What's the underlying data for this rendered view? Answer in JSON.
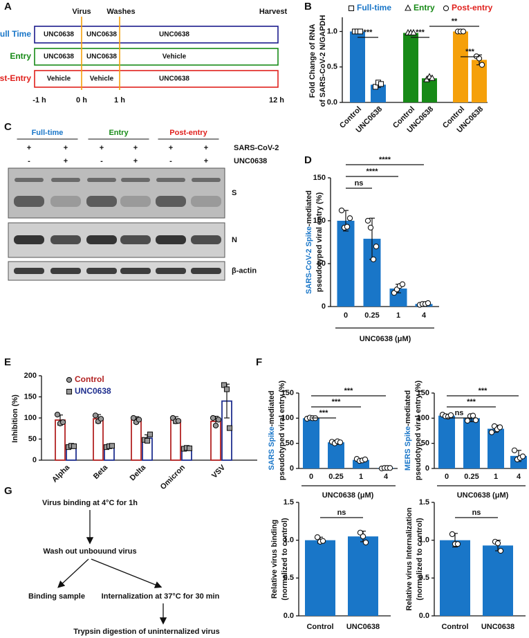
{
  "panel_labels": [
    "A",
    "B",
    "C",
    "D",
    "E",
    "F",
    "G"
  ],
  "timeline": {
    "top_labels": [
      "Virus",
      "Washes",
      "Harvest"
    ],
    "rows": [
      {
        "name": "Full Time",
        "color": "#1976c8",
        "box": "#1a1a8c",
        "cells": [
          "UNC0638",
          "UNC0638",
          "UNC0638"
        ]
      },
      {
        "name": "Entry",
        "color": "#178a17",
        "box": "#178a17",
        "cells": [
          "UNC0638",
          "UNC0638",
          "Vehicle"
        ]
      },
      {
        "name": "Post-Entry",
        "color": "#e0201c",
        "box": "#e0201c",
        "cells": [
          "Vehicle",
          "Vehicle",
          "UNC0638"
        ]
      }
    ],
    "ticks": [
      "-1 h",
      "0 h",
      "1 h",
      "12 h"
    ]
  },
  "blot": {
    "groups": [
      {
        "name": "Full-time",
        "color": "#1976c8"
      },
      {
        "name": "Entry",
        "color": "#178a17"
      },
      {
        "name": "Post-entry",
        "color": "#e0201c"
      }
    ],
    "treatments": [
      {
        "name": "SARS-CoV-2",
        "signs": [
          "+",
          "+",
          "+",
          "+",
          "+",
          "+"
        ]
      },
      {
        "name": "UNC0638",
        "signs": [
          "-",
          "+",
          "-",
          "+",
          "-",
          "+"
        ]
      }
    ],
    "bands": [
      "S",
      "N",
      "β-actin"
    ]
  },
  "flowchart": {
    "steps": [
      "Virus binding at  4°C for 1h",
      "Wash out unbouund virus",
      "Binding sample",
      "Internalization at 37°C for 30 min",
      "Trypsin digestion of uninternalized virus"
    ]
  },
  "chart_data": [
    {
      "type": "bar",
      "ylabel": [
        "Fold Change of RNA",
        "of SARS-CoV-2 N/GAPDH"
      ],
      "categories": [
        "Control",
        "UNC0638"
      ],
      "series": [
        {
          "name": "Full-time",
          "color": "#1976c8",
          "label_color": "#1976c8",
          "marker": "square",
          "values": [
            1,
            0.25
          ],
          "errors": [
            0.01,
            0.04
          ],
          "points": [
            [
              1,
              1,
              1
            ],
            [
              0.22,
              0.28,
              0.26
            ]
          ]
        },
        {
          "name": "Entry",
          "color": "#178a17",
          "label_color": "#178a17",
          "marker": "triangle",
          "values": [
            0.98,
            0.34
          ],
          "errors": [
            0.01,
            0.03
          ],
          "points": [
            [
              0.98,
              0.98,
              0.98
            ],
            [
              0.32,
              0.36,
              0.34
            ]
          ]
        },
        {
          "name": "Post-entry",
          "color": "#f5a00a",
          "label_color": "#e0201c",
          "marker": "circle",
          "values": [
            1,
            0.6
          ],
          "errors": [
            0.01,
            0.07
          ],
          "points": [
            [
              1,
              1,
              1
            ],
            [
              0.65,
              0.62,
              0.53
            ]
          ]
        }
      ],
      "ylim": [
        0,
        1.2
      ],
      "yticks": [
        {
          "value": 0,
          "label": "0.0"
        },
        0.5,
        {
          "value": 1,
          "label": "1.0"
        }
      ],
      "annotations": [
        "***",
        "***",
        "**",
        "***"
      ]
    },
    {
      "type": "bar",
      "ylabel_highlight": "SARS-CoV-2 Spike",
      "ylabel_highlight_color": "#1976c8",
      "ylabel": [
        "-mediated",
        "pseudotyped viral entry (%)"
      ],
      "categories": [
        "0",
        "0.25",
        "1",
        "4"
      ],
      "values": [
        100,
        79,
        21,
        3
      ],
      "errors": [
        12,
        24,
        5,
        1
      ],
      "points": [
        [
          112,
          92,
          93,
          103
        ],
        [
          100,
          92,
          55,
          70
        ],
        [
          16,
          20,
          24,
          26
        ],
        [
          2,
          3,
          3,
          4
        ]
      ],
      "color": "#1976c8",
      "xlabel": "UNC0638 (μM)",
      "ylim": [
        0,
        150
      ],
      "yticks": [
        0,
        50,
        100,
        150
      ],
      "annotations": [
        "ns",
        "****",
        "****"
      ]
    },
    {
      "type": "bar",
      "ylabel": [
        "Inhibition (%)"
      ],
      "categories": [
        "Alpha",
        "Beta",
        "Delta",
        "Omicron",
        "VSV"
      ],
      "series": [
        {
          "name": "Control",
          "color": "#b22222",
          "marker": "circle",
          "values": [
            95,
            98,
            95,
            95,
            92
          ],
          "errors": [
            12,
            10,
            8,
            8,
            12
          ],
          "points": [
            [
              108,
              87,
              90
            ],
            [
              106,
              92,
              98
            ],
            [
              100,
              90,
              96
            ],
            [
              100,
              92,
              93
            ],
            [
              100,
              82,
              96
            ]
          ]
        },
        {
          "name": "UNC0638",
          "color": "#1f2f8f",
          "marker": "square",
          "values": [
            32,
            33,
            52,
            28,
            140
          ],
          "errors": [
            2,
            3,
            8,
            2,
            40
          ],
          "points": [
            [
              31,
              34,
              33
            ],
            [
              31,
              33,
              34
            ],
            [
              48,
              46,
              61
            ],
            [
              27,
              29,
              28
            ],
            [
              178,
              168,
              76
            ]
          ]
        }
      ],
      "ylim": [
        0,
        200
      ],
      "yticks": [
        0,
        50,
        100,
        150,
        200
      ],
      "hollow": true
    },
    {
      "type": "bar",
      "ylabel_highlight": "SARS Spike",
      "ylabel_highlight_color": "#1976c8",
      "ylabel": [
        "-mediated",
        "pseudotyped viral entry (%)"
      ],
      "categories": [
        "0",
        "0.25",
        "1",
        "4"
      ],
      "values": [
        100,
        52,
        17,
        1
      ],
      "errors": [
        2,
        4,
        3,
        0.5
      ],
      "points": [
        [
          99,
          101,
          100,
          100
        ],
        [
          53,
          50,
          54,
          52
        ],
        [
          19,
          15,
          16,
          18
        ],
        [
          0,
          1,
          1,
          1
        ]
      ],
      "color": "#1976c8",
      "xlabel": "UNC0638 (μM)",
      "ylim": [
        0,
        150
      ],
      "yticks": [
        0,
        50,
        100,
        150
      ],
      "annotations": [
        "***",
        "***",
        "***"
      ]
    },
    {
      "type": "bar",
      "ylabel_highlight": "MERS Spike",
      "ylabel_highlight_color": "#1976c8",
      "ylabel": [
        "-mediated",
        "pseudotyped viral entry (%)"
      ],
      "categories": [
        "0",
        "0.25",
        "1",
        "4"
      ],
      "values": [
        105,
        100,
        79,
        25
      ],
      "errors": [
        3,
        7,
        7,
        11
      ],
      "points": [
        [
          107,
          104,
          103,
          106
        ],
        [
          95,
          104,
          105,
          96
        ],
        [
          72,
          84,
          78,
          82
        ],
        [
          36,
          18,
          21,
          24
        ]
      ],
      "color": "#1976c8",
      "xlabel": "UNC0638 (μM)",
      "ylim": [
        0,
        150
      ],
      "yticks": [
        0,
        50,
        100,
        150
      ],
      "annotations": [
        "ns",
        "***",
        "***"
      ]
    },
    {
      "type": "bar",
      "ylabel": [
        "Relative virus binding",
        "(normalized to control)"
      ],
      "categories": [
        "Control",
        "UNC0638"
      ],
      "values": [
        1,
        1.05
      ],
      "errors": [
        0.04,
        0.07
      ],
      "points": [
        [
          1.04,
          0.98,
          0.99
        ],
        [
          1.1,
          1.05,
          0.97
        ]
      ],
      "color": "#1976c8",
      "ylim": [
        0,
        1.5
      ],
      "yticks": [
        {
          "value": 0,
          "label": "0.0"
        },
        0.5,
        {
          "value": 1,
          "label": "1.0"
        },
        1.5
      ],
      "annotations": [
        "ns"
      ]
    },
    {
      "type": "bar",
      "ylabel": [
        "Relative virus Internalization",
        "(normalized to control)"
      ],
      "categories": [
        "Control",
        "UNC0638"
      ],
      "values": [
        1,
        0.93
      ],
      "errors": [
        0.09,
        0.07
      ],
      "points": [
        [
          1.08,
          0.95,
          0.95
        ],
        [
          0.98,
          0.96,
          0.86
        ]
      ],
      "color": "#1976c8",
      "ylim": [
        0,
        1.5
      ],
      "yticks": [
        {
          "value": 0,
          "label": "0.0"
        },
        0.5,
        {
          "value": 1,
          "label": "1.0"
        },
        1.5
      ],
      "annotations": [
        "ns"
      ]
    }
  ]
}
